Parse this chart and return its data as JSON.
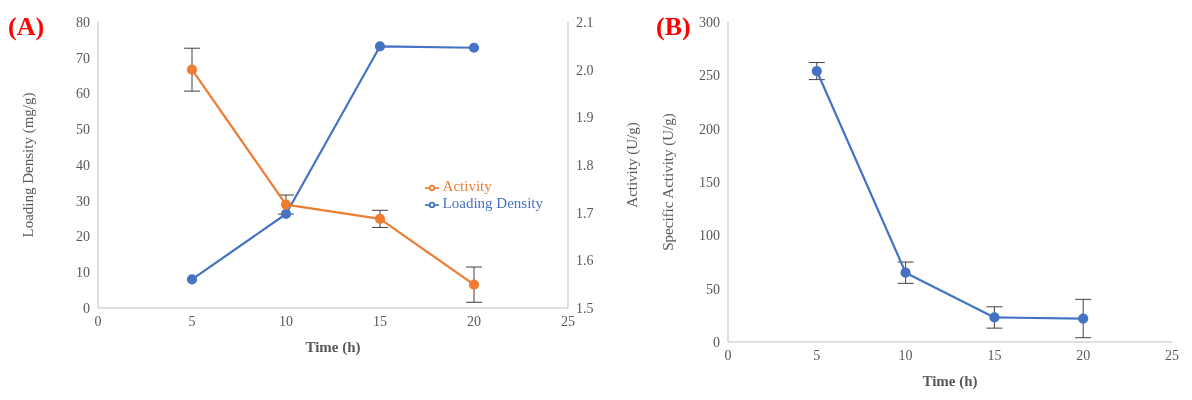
{
  "chart_data": [
    {
      "type": "line",
      "title": "(A)",
      "xlabel": "Time (h)",
      "ylabel": "Loading Density (mg/g)",
      "y2label": "Activity (U/g)",
      "x": [
        5,
        10,
        15,
        20
      ],
      "xlim": [
        0,
        25
      ],
      "xticks": [
        0,
        5,
        10,
        15,
        20,
        25
      ],
      "ylim": [
        0,
        80
      ],
      "yticks": [
        0,
        10,
        20,
        30,
        40,
        50,
        60,
        70,
        80
      ],
      "y2lim": [
        1.5,
        2.1
      ],
      "y2ticks": [
        {
          "value": 1.5,
          "label": "1.5"
        },
        {
          "value": 1.6,
          "label": "1.6"
        },
        {
          "value": 1.7,
          "label": "1.7"
        },
        {
          "value": 1.8,
          "label": "1.8"
        },
        {
          "value": 1.9,
          "label": "1.9"
        },
        {
          "value": 2.0,
          "label": "2.0"
        },
        {
          "value": 2.1,
          "label": "2.1"
        }
      ],
      "legend": "right",
      "marker": "circle",
      "series": [
        {
          "name": "Loading Density",
          "color": "#4472c4",
          "values": [
            8,
            26.3,
            73.2,
            72.8
          ]
        },
        {
          "name": "Activity",
          "color": "#ed7d31",
          "axis": "y2",
          "values": [
            2.0,
            1.717,
            1.687,
            1.549
          ],
          "errors": [
            0.045,
            0.02,
            0.018,
            0.037
          ]
        }
      ]
    },
    {
      "type": "line",
      "title": "(B)",
      "xlabel": "Time (h)",
      "ylabel": "Specific Activity (U/g)",
      "x": [
        5,
        10,
        15,
        20
      ],
      "xlim": [
        0,
        25
      ],
      "xticks": [
        0,
        5,
        10,
        15,
        20,
        25
      ],
      "ylim": [
        0,
        300
      ],
      "yticks": [
        0,
        50,
        100,
        150,
        200,
        250,
        300
      ],
      "marker": "circle",
      "series": [
        {
          "color": "#4472c4",
          "values": [
            254,
            65,
            23,
            22
          ],
          "errors": [
            8,
            10,
            10,
            18
          ]
        }
      ]
    }
  ]
}
